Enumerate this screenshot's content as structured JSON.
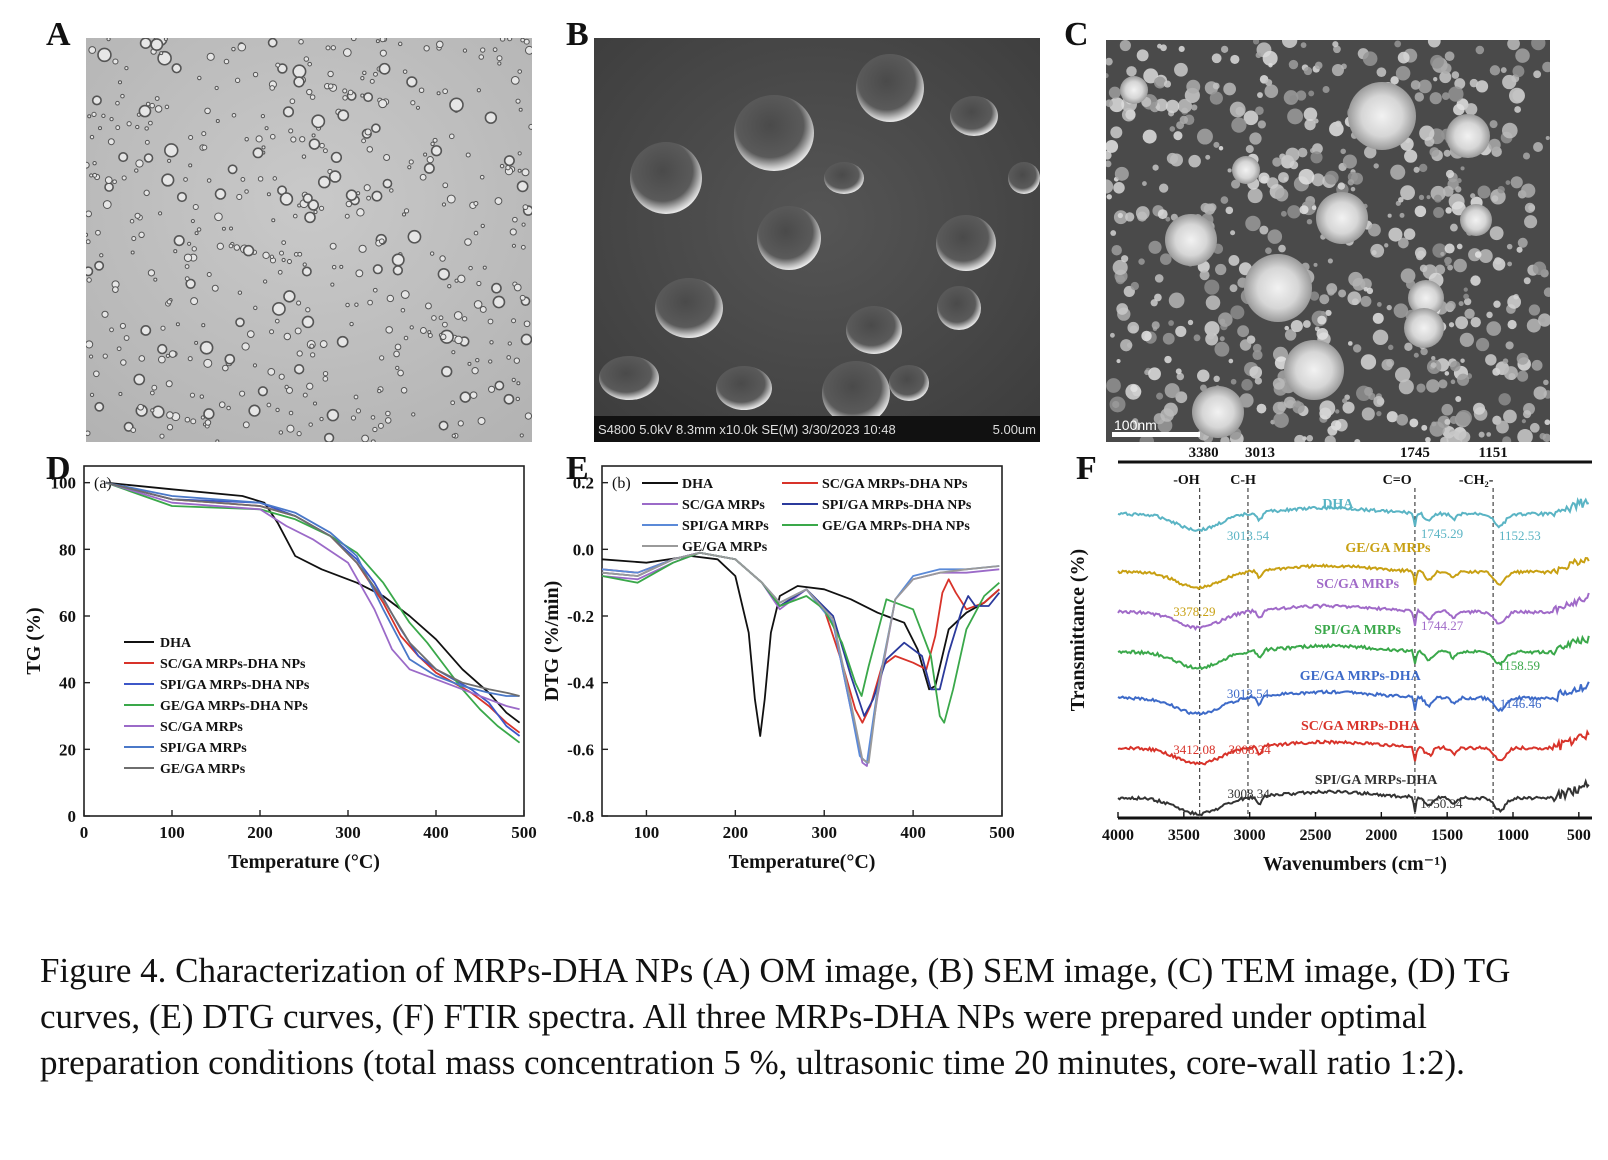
{
  "panels": {
    "A": {
      "letter": "A"
    },
    "B": {
      "letter": "B",
      "info_bar": "S4800 5.0kV 8.3mm x10.0k SE(M) 3/30/2023 10:48",
      "scale": "5.00um"
    },
    "C": {
      "letter": "C",
      "scale": "100nm"
    },
    "D": {
      "letter": "D"
    },
    "E": {
      "letter": "E"
    },
    "F": {
      "letter": "F"
    }
  },
  "chart_data": [
    {
      "id": "D",
      "type": "line",
      "sublabel": "(a)",
      "xlabel": "Temperature (°C)",
      "ylabel": "TG (%)",
      "xlim": [
        0,
        500
      ],
      "ylim": [
        0,
        105
      ],
      "xticks": [
        0,
        100,
        200,
        300,
        400,
        500
      ],
      "yticks": [
        0,
        20,
        40,
        60,
        80,
        100
      ],
      "legend_position": "bottom-left",
      "series": [
        {
          "name": "DHA",
          "color": "#111111",
          "x": [
            25,
            100,
            180,
            205,
            220,
            240,
            270,
            310,
            340,
            370,
            400,
            430,
            460,
            480,
            495
          ],
          "y": [
            100,
            98,
            96,
            94,
            88,
            78,
            74,
            70,
            66,
            60,
            53,
            44,
            37,
            31,
            28
          ]
        },
        {
          "name": "SC/GA MRPs-DHA NPs",
          "color": "#d8332a",
          "x": [
            25,
            100,
            200,
            240,
            280,
            310,
            340,
            360,
            380,
            400,
            420,
            440,
            460,
            480,
            495
          ],
          "y": [
            100,
            95,
            93,
            90,
            84,
            76,
            64,
            54,
            48,
            43,
            40,
            37,
            33,
            28,
            25
          ]
        },
        {
          "name": "SPI/GA MRPs-DHA NPs",
          "color": "#3d57c8",
          "x": [
            25,
            100,
            200,
            240,
            280,
            310,
            330,
            360,
            380,
            400,
            420,
            440,
            460,
            480,
            495
          ],
          "y": [
            100,
            95,
            94,
            90,
            84,
            77,
            70,
            56,
            48,
            44,
            41,
            38,
            34,
            27,
            24
          ]
        },
        {
          "name": "GE/GA MRPs-DHA NPs",
          "color": "#3aa84a",
          "x": [
            25,
            100,
            200,
            240,
            280,
            310,
            340,
            370,
            390,
            410,
            430,
            450,
            470,
            485,
            495
          ],
          "y": [
            100,
            93,
            92,
            89,
            84,
            79,
            70,
            58,
            52,
            45,
            38,
            32,
            27,
            24,
            22
          ]
        },
        {
          "name": "SC/GA MRPs",
          "color": "#9b6ac8",
          "x": [
            25,
            100,
            200,
            230,
            260,
            300,
            330,
            350,
            370,
            400,
            430,
            460,
            480,
            495
          ],
          "y": [
            100,
            94,
            92,
            87,
            83,
            76,
            62,
            50,
            44,
            41,
            38,
            35,
            33,
            32
          ]
        },
        {
          "name": "SPI/GA MRPs",
          "color": "#4a78c8",
          "x": [
            25,
            100,
            200,
            240,
            280,
            310,
            340,
            370,
            400,
            430,
            460,
            480,
            495
          ],
          "y": [
            100,
            96,
            94,
            91,
            85,
            78,
            62,
            47,
            42,
            39,
            37,
            36,
            36
          ]
        },
        {
          "name": "GE/GA MRPs",
          "color": "#6e6e6e",
          "x": [
            25,
            100,
            200,
            240,
            280,
            310,
            340,
            370,
            400,
            430,
            460,
            480,
            495
          ],
          "y": [
            100,
            95,
            93,
            90,
            84,
            76,
            65,
            52,
            44,
            40,
            38,
            37,
            36
          ]
        }
      ]
    },
    {
      "id": "E",
      "type": "line",
      "sublabel": "(b)",
      "xlabel": "Temperature(°C)",
      "ylabel": "DTG (%/min)",
      "xlim": [
        50,
        500
      ],
      "ylim": [
        -0.8,
        0.25
      ],
      "xticks": [
        100,
        200,
        300,
        400,
        500
      ],
      "yticks": [
        -0.8,
        -0.6,
        -0.4,
        -0.2,
        0.0,
        0.2
      ],
      "yticklabels": [
        "-0.8",
        "-0.6",
        "-0.4",
        "-0.2",
        "0.0",
        "0.2"
      ],
      "legend_position": "top",
      "series": [
        {
          "name": "DHA",
          "color": "#111111",
          "x": [
            50,
            100,
            150,
            180,
            200,
            215,
            222,
            228,
            233,
            240,
            250,
            270,
            300,
            330,
            360,
            390,
            405,
            418,
            425,
            440,
            460,
            480,
            497
          ],
          "y": [
            -0.03,
            -0.04,
            -0.02,
            -0.03,
            -0.08,
            -0.25,
            -0.45,
            -0.56,
            -0.45,
            -0.25,
            -0.14,
            -0.11,
            -0.12,
            -0.15,
            -0.19,
            -0.22,
            -0.3,
            -0.42,
            -0.41,
            -0.24,
            -0.19,
            -0.16,
            -0.12
          ]
        },
        {
          "name": "SC/GA MRPs-DHA NPs",
          "color": "#d8332a",
          "x": [
            50,
            90,
            130,
            160,
            200,
            230,
            250,
            280,
            300,
            320,
            335,
            343,
            352,
            365,
            380,
            400,
            415,
            425,
            433,
            440,
            448,
            460,
            480,
            497
          ],
          "y": [
            -0.06,
            -0.07,
            -0.03,
            -0.01,
            -0.03,
            -0.1,
            -0.17,
            -0.12,
            -0.18,
            -0.34,
            -0.48,
            -0.52,
            -0.47,
            -0.35,
            -0.32,
            -0.34,
            -0.36,
            -0.26,
            -0.13,
            -0.09,
            -0.13,
            -0.18,
            -0.16,
            -0.12
          ]
        },
        {
          "name": "SC/GA MRPs",
          "color": "#9b6ac8",
          "x": [
            50,
            90,
            130,
            160,
            200,
            230,
            250,
            280,
            310,
            330,
            343,
            348,
            360,
            380,
            400,
            430,
            460,
            497
          ],
          "y": [
            -0.08,
            -0.09,
            -0.04,
            -0.01,
            -0.03,
            -0.1,
            -0.18,
            -0.12,
            -0.22,
            -0.48,
            -0.64,
            -0.65,
            -0.44,
            -0.15,
            -0.09,
            -0.07,
            -0.07,
            -0.06
          ]
        },
        {
          "name": "SPI/GA MRPs-DHA NPs",
          "color": "#2b3a9c",
          "x": [
            50,
            90,
            130,
            160,
            200,
            230,
            250,
            280,
            310,
            330,
            345,
            355,
            370,
            390,
            410,
            420,
            430,
            440,
            455,
            462,
            470,
            485,
            497
          ],
          "y": [
            -0.07,
            -0.08,
            -0.03,
            -0.01,
            -0.03,
            -0.1,
            -0.17,
            -0.12,
            -0.2,
            -0.38,
            -0.5,
            -0.45,
            -0.33,
            -0.28,
            -0.32,
            -0.42,
            -0.42,
            -0.31,
            -0.18,
            -0.14,
            -0.17,
            -0.17,
            -0.13
          ]
        },
        {
          "name": "SPI/GA MRPs",
          "color": "#5b8ad8",
          "x": [
            50,
            90,
            130,
            160,
            200,
            230,
            250,
            280,
            310,
            330,
            340,
            348,
            360,
            380,
            400,
            430,
            460,
            497
          ],
          "y": [
            -0.06,
            -0.07,
            -0.03,
            -0.01,
            -0.03,
            -0.1,
            -0.16,
            -0.12,
            -0.22,
            -0.48,
            -0.62,
            -0.64,
            -0.42,
            -0.15,
            -0.08,
            -0.06,
            -0.06,
            -0.05
          ]
        },
        {
          "name": "GE/GA MRPs-DHA NPs",
          "color": "#3aa84a",
          "x": [
            50,
            90,
            130,
            160,
            200,
            230,
            250,
            280,
            300,
            320,
            335,
            342,
            350,
            370,
            400,
            420,
            430,
            435,
            445,
            460,
            480,
            497
          ],
          "y": [
            -0.08,
            -0.1,
            -0.04,
            -0.01,
            -0.03,
            -0.1,
            -0.17,
            -0.14,
            -0.18,
            -0.28,
            -0.4,
            -0.44,
            -0.35,
            -0.15,
            -0.18,
            -0.32,
            -0.5,
            -0.52,
            -0.42,
            -0.24,
            -0.14,
            -0.1
          ]
        },
        {
          "name": "GE/GA MRPs",
          "color": "#9a9a9a",
          "x": [
            50,
            90,
            130,
            160,
            200,
            230,
            250,
            280,
            310,
            330,
            343,
            350,
            360,
            380,
            400,
            430,
            460,
            497
          ],
          "y": [
            -0.07,
            -0.08,
            -0.03,
            -0.01,
            -0.03,
            -0.1,
            -0.16,
            -0.12,
            -0.21,
            -0.46,
            -0.63,
            -0.64,
            -0.43,
            -0.15,
            -0.09,
            -0.07,
            -0.06,
            -0.05
          ]
        }
      ]
    },
    {
      "id": "F",
      "type": "line",
      "xlabel": "Wavenumbers (cm⁻¹)",
      "ylabel": "Transmittance (%)",
      "xlim": [
        4000,
        400
      ],
      "x_reversed": true,
      "xticks": [
        4000,
        3500,
        3000,
        2500,
        2000,
        1500,
        1000,
        500
      ],
      "top_labels": [
        "3380",
        "3013",
        "1745",
        "1151"
      ],
      "group_labels": [
        "-OH",
        "C-H",
        "C=O",
        "-CH₂-"
      ],
      "peak_lines": [
        3380,
        3013,
        1745,
        1151
      ],
      "series": [
        {
          "name": "DHA",
          "color": "#5ab4c4",
          "annotations": [
            "3013.54",
            "1745.29",
            "1152.53"
          ]
        },
        {
          "name": "GE/GA MRPs",
          "color": "#c8a013",
          "annotations": [
            "3378.29"
          ]
        },
        {
          "name": "SC/GA MRPs",
          "color": "#a06ac8",
          "annotations": [
            "1744.27"
          ]
        },
        {
          "name": "SPI/GA MRPs",
          "color": "#3aa84a",
          "annotations": [
            "1158.59"
          ]
        },
        {
          "name": "GE/GA MRPs-DHA",
          "color": "#3d6ac8",
          "annotations": [
            "3013.54",
            "1146.46"
          ]
        },
        {
          "name": "SC/GA MRPs-DHA",
          "color": "#d8332a",
          "annotations": [
            "3412.08",
            "3008.34"
          ]
        },
        {
          "name": "SPI/GA MRPs-DHA",
          "color": "#333333",
          "annotations": [
            "3008.34",
            "1750.34"
          ]
        }
      ]
    }
  ],
  "caption": "Figure 4. Characterization of MRPs-DHA NPs (A) OM image, (B) SEM image, (C) TEM image, (D) TG curves, (E) DTG curves, (F) FTIR spectra. All three MRPs-DHA NPs were prepared under optimal preparation conditions (total mass concentration 5 %, ultrasonic time 20 minutes, core-wall ratio 1:2)."
}
